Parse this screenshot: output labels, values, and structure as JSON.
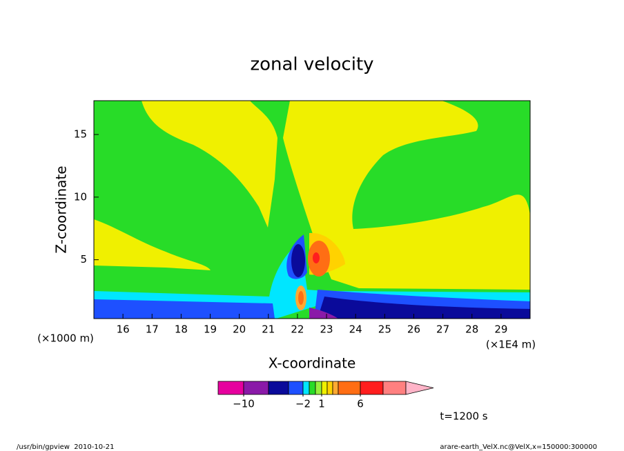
{
  "chart_data": {
    "type": "contour",
    "title": "zonal velocity",
    "x_label": "X-coordinate",
    "y_label": "Z-coordinate",
    "y_unit": "(×1000 m)",
    "x_unit": "(×1E4 m)",
    "xlim": [
      15,
      30
    ],
    "xticks": [
      16,
      17,
      18,
      19,
      20,
      21,
      22,
      23,
      24,
      25,
      26,
      27,
      28,
      29
    ],
    "ylim": [
      0.3,
      17.7
    ],
    "yticks": [
      5,
      10,
      15
    ],
    "colorbar": {
      "levels": [
        -14,
        -10,
        -6,
        -3,
        -2,
        -1,
        0,
        1,
        2,
        3,
        4,
        6,
        10,
        14
      ],
      "colors": [
        "#e6009e",
        "#8a1aa8",
        "#0a0a9a",
        "#1e50ff",
        "#00e6ff",
        "#28dc28",
        "#96f03c",
        "#f0f000",
        "#ffd200",
        "#ffaa32",
        "#ff6e14",
        "#ff1e1e",
        "#ff8080",
        "#ffb4c8"
      ],
      "ticks": [
        {
          "value": -10,
          "label": "−10"
        },
        {
          "value": -2,
          "label": "−2"
        },
        1,
        6
      ]
    },
    "time_label": "t=1200 s",
    "footer_left": "/usr/bin/gpview  2010-10-21",
    "footer_right": "arare-earth_VelX.nc@VelX,x=150000:300000"
  }
}
